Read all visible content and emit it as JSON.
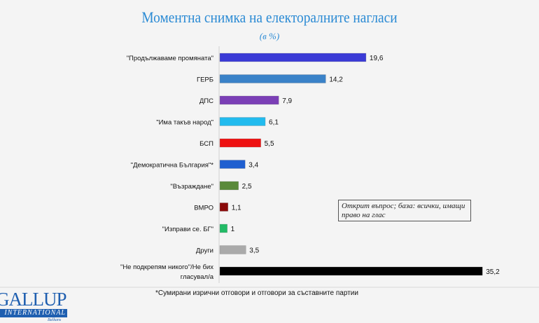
{
  "chart_data": {
    "type": "bar",
    "orientation": "horizontal",
    "title": "Моментна снимка на електоралните нагласи",
    "subtitle": "(в %)",
    "categories": [
      "\"Продължаваме промяната\"",
      "ГЕРБ",
      "ДПС",
      "\"Има такъв народ\"",
      "БСП",
      "\"Демократична България\"*",
      "\"Възраждане\"",
      "ВМРО",
      "\"Изправи се. БГ\"",
      "Други",
      "\"Не подкрепям никого\"/Не бих гласувал/а"
    ],
    "values": [
      19.6,
      14.2,
      7.9,
      6.1,
      5.5,
      3.4,
      2.5,
      1.1,
      1,
      3.5,
      35.2
    ],
    "value_labels": [
      "19,6",
      "14,2",
      "7,9",
      "6,1",
      "5,5",
      "3,4",
      "2,5",
      "1,1",
      "1",
      "3,5",
      "35,2"
    ],
    "colors": [
      "#3a3ad6",
      "#3a82c8",
      "#7b3fb6",
      "#22bbee",
      "#ee1111",
      "#1f5fd0",
      "#5a8a3a",
      "#8b0a0a",
      "#22bb66",
      "#aaaaaa",
      "#000000"
    ],
    "xlim": [
      0,
      36
    ],
    "grid": false,
    "legend": "none"
  },
  "note": "Открит въпрос; база: всички, имащи право на глас",
  "footnote": "*Сумирани изрични отговори и отговори за съставните партии",
  "logo": {
    "line1": "GALLUP",
    "line2": "INTERNATIONAL",
    "line3": "Balkans"
  },
  "colors": {
    "title": "#2a8ad4"
  }
}
